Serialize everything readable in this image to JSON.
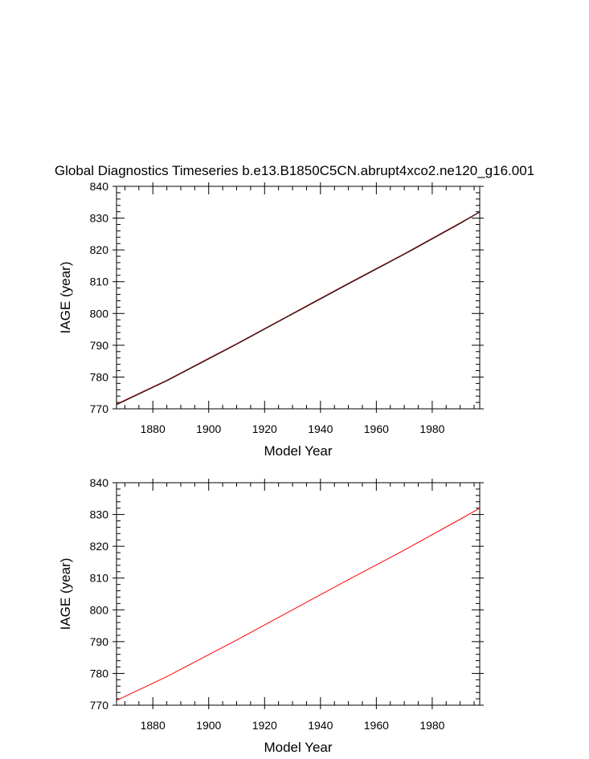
{
  "title": "Global Diagnostics Timeseries b.e13.B1850C5CN.abrupt4xco2.ne120_g16.001",
  "chart_data": [
    {
      "type": "line",
      "xlabel": "Model Year",
      "ylabel": "IAGE (year)",
      "xlim": [
        1867,
        1997
      ],
      "ylim": [
        770,
        840
      ],
      "xticks": [
        1880,
        1900,
        1920,
        1940,
        1960,
        1980
      ],
      "yticks": [
        770,
        780,
        790,
        800,
        810,
        820,
        830,
        840
      ],
      "grid": false,
      "series": [
        {
          "color": "#b00000",
          "x": [
            1867,
            1885,
            1910,
            1930,
            1950,
            1970,
            1990,
            1997
          ],
          "y": [
            771.5,
            779.0,
            790.5,
            800.0,
            809.5,
            818.8,
            828.5,
            832.0
          ]
        },
        {
          "color": "#1a1a1a",
          "x": [
            1867,
            1885,
            1910,
            1930,
            1950,
            1970,
            1990,
            1997
          ],
          "y": [
            771.3,
            778.8,
            790.3,
            799.8,
            809.3,
            818.6,
            828.3,
            831.9
          ]
        }
      ]
    },
    {
      "type": "line",
      "xlabel": "Model Year",
      "ylabel": "IAGE (year)",
      "xlim": [
        1867,
        1997
      ],
      "ylim": [
        770,
        840
      ],
      "xticks": [
        1880,
        1900,
        1920,
        1940,
        1960,
        1980
      ],
      "yticks": [
        770,
        780,
        790,
        800,
        810,
        820,
        830,
        840
      ],
      "grid": false,
      "series": [
        {
          "color": "#ff0000",
          "x": [
            1867,
            1885,
            1910,
            1930,
            1950,
            1970,
            1990,
            1997
          ],
          "y": [
            771.5,
            779.0,
            790.5,
            800.0,
            809.5,
            818.8,
            828.5,
            832.0
          ]
        }
      ]
    }
  ]
}
